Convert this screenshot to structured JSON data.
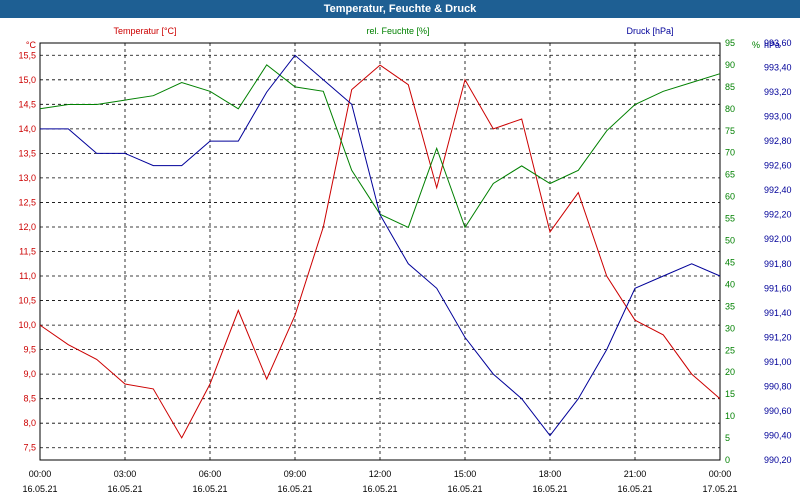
{
  "window": {
    "title": "Temperatur, Feuchte & Druck"
  },
  "chart_data": {
    "type": "line",
    "title": "Temperatur, Feuchte & Druck",
    "x": [
      "00:00",
      "01:00",
      "02:00",
      "03:00",
      "04:00",
      "05:00",
      "06:00",
      "07:00",
      "08:00",
      "09:00",
      "10:00",
      "11:00",
      "12:00",
      "13:00",
      "14:00",
      "15:00",
      "16:00",
      "17:00",
      "18:00",
      "19:00",
      "20:00",
      "21:00",
      "22:00",
      "23:00",
      "24:00"
    ],
    "xlim_hours": [
      0,
      24
    ],
    "x_ticks": [
      {
        "h": 0,
        "time": "00:00",
        "date": "16.05.21"
      },
      {
        "h": 3,
        "time": "03:00",
        "date": "16.05.21"
      },
      {
        "h": 6,
        "time": "06:00",
        "date": "16.05.21"
      },
      {
        "h": 9,
        "time": "09:00",
        "date": "16.05.21"
      },
      {
        "h": 12,
        "time": "12:00",
        "date": "16.05.21"
      },
      {
        "h": 15,
        "time": "15:00",
        "date": "16.05.21"
      },
      {
        "h": 18,
        "time": "18:00",
        "date": "16.05.21"
      },
      {
        "h": 21,
        "time": "21:00",
        "date": "16.05.21"
      },
      {
        "h": 24,
        "time": "00:00",
        "date": "17.05.21"
      }
    ],
    "grid": true,
    "axes": {
      "temperature": {
        "unit_label": "°C",
        "min": 7.25,
        "max": 15.75,
        "ticks": [
          "7,5",
          "8,0",
          "8,5",
          "9,0",
          "9,5",
          "10,0",
          "10,5",
          "11,0",
          "11,5",
          "12,0",
          "12,5",
          "13,0",
          "13,5",
          "14,0",
          "14,5",
          "15,0",
          "15,5"
        ],
        "tick_start": 7.5,
        "tick_step": 0.5,
        "color": "#cc0000"
      },
      "humidity": {
        "unit_label": "%",
        "min": 0,
        "max": 95,
        "ticks": [
          "0",
          "5",
          "10",
          "15",
          "20",
          "25",
          "30",
          "35",
          "40",
          "45",
          "50",
          "55",
          "60",
          "65",
          "70",
          "75",
          "80",
          "85",
          "90",
          "95"
        ],
        "tick_start": 0,
        "tick_step": 5,
        "color": "#008000"
      },
      "pressure": {
        "unit_label": "hPa",
        "min": 990.2,
        "max": 993.6,
        "ticks": [
          "990,20",
          "990,40",
          "990,60",
          "990,80",
          "991,00",
          "991,20",
          "991,40",
          "991,60",
          "991,80",
          "992,00",
          "992,20",
          "992,40",
          "992,60",
          "992,80",
          "993,00",
          "993,20",
          "993,40",
          "993,60"
        ],
        "tick_start": 990.2,
        "tick_step": 0.2,
        "color": "#000099"
      }
    },
    "series": [
      {
        "name": "Temperatur [°C]",
        "axis": "temperature",
        "color": "#cc0000",
        "values": [
          10.0,
          9.6,
          9.3,
          8.8,
          8.7,
          7.7,
          8.8,
          10.3,
          8.9,
          10.2,
          12.0,
          14.8,
          15.3,
          14.9,
          12.8,
          15.0,
          14.0,
          14.2,
          11.9,
          12.7,
          11.0,
          10.1,
          9.8,
          9.0,
          8.5
        ]
      },
      {
        "name": "rel. Feuchte [%]",
        "axis": "humidity",
        "color": "#008000",
        "values": [
          80,
          81,
          81,
          82,
          83,
          86,
          84,
          80,
          90,
          85,
          84,
          66,
          56,
          53,
          71,
          53,
          63,
          67,
          63,
          66,
          75,
          81,
          84,
          86,
          88
        ]
      },
      {
        "name": "Druck [hPa]",
        "axis": "pressure",
        "color": "#000099",
        "values": [
          992.9,
          992.9,
          992.7,
          992.7,
          992.6,
          992.6,
          992.8,
          992.8,
          993.2,
          993.5,
          993.3,
          993.1,
          992.2,
          991.8,
          991.6,
          991.2,
          990.9,
          990.7,
          990.4,
          990.7,
          991.1,
          991.6,
          991.7,
          991.8,
          991.7
        ]
      }
    ]
  }
}
